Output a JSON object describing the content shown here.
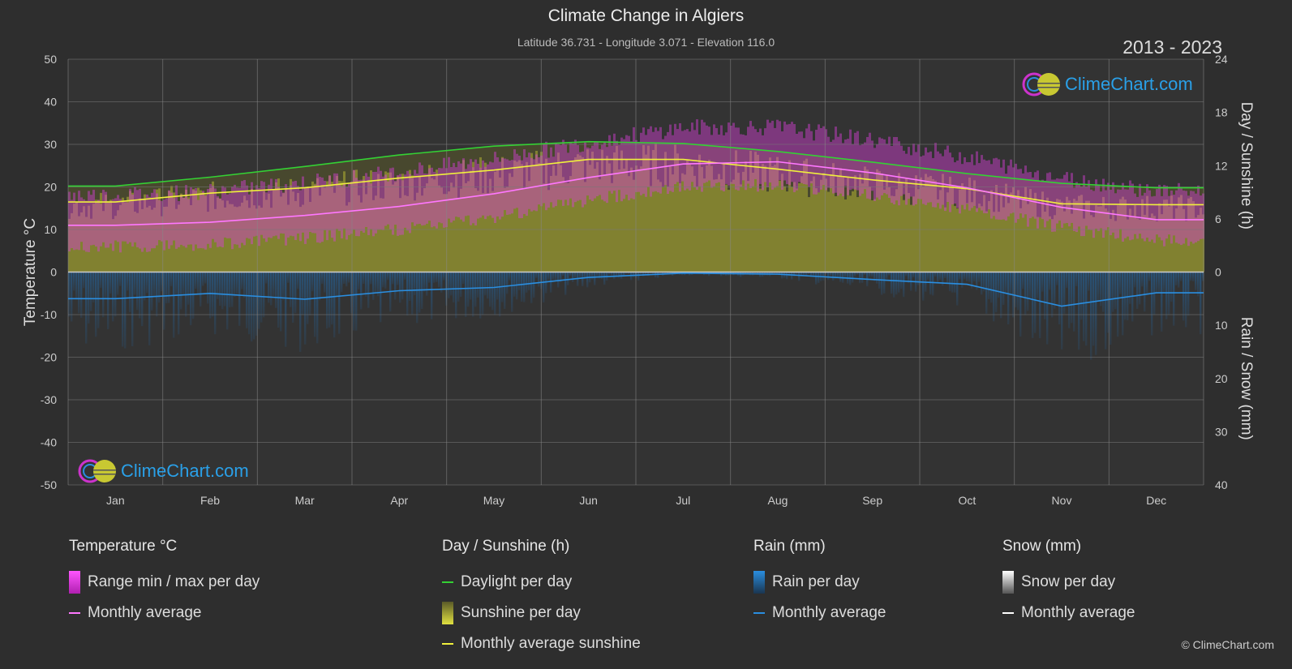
{
  "header": {
    "title": "Climate Change in Algiers",
    "subtitle": "Latitude 36.731 - Longitude 3.071 - Elevation 116.0",
    "years": "2013 - 2023"
  },
  "brand": {
    "logo_text": "ClimeChart.com",
    "copyright": "© ClimeChart.com"
  },
  "colors": {
    "background": "#2e2e2e",
    "temp_range": "#d63fd6",
    "temp_avg": "#ff77ff",
    "daylight": "#34d134",
    "sunshine_fill": "#c8c832",
    "sunshine_avg": "#f0f03c",
    "rain": "#1e78c8",
    "rain_avg": "#2a8ee0",
    "snow_avg": "#ffffff"
  },
  "chart_data": {
    "type": "line",
    "categories": [
      "Jan",
      "Feb",
      "Mar",
      "Apr",
      "May",
      "Jun",
      "Jul",
      "Aug",
      "Sep",
      "Oct",
      "Nov",
      "Dec"
    ],
    "y_left": {
      "label": "Temperature °C",
      "range": [
        -50,
        50
      ],
      "ticks": [
        50,
        40,
        30,
        20,
        10,
        0,
        -10,
        -20,
        -30,
        -40,
        -50
      ]
    },
    "y_right_top": {
      "label": "Day / Sunshine (h)",
      "range": [
        0,
        24
      ],
      "ticks": [
        24,
        18,
        12,
        6,
        0
      ]
    },
    "y_right_bottom": {
      "label": "Rain / Snow (mm)",
      "range": [
        0,
        40
      ],
      "ticks": [
        0,
        10,
        20,
        30,
        40
      ]
    },
    "grid": true,
    "series": [
      {
        "name": "Daylight per day",
        "axis": "sunshine_h",
        "values": [
          9.7,
          10.7,
          11.9,
          13.2,
          14.2,
          14.7,
          14.5,
          13.6,
          12.4,
          11.1,
          10.0,
          9.5
        ]
      },
      {
        "name": "Monthly average sunshine",
        "axis": "sunshine_h",
        "values": [
          7.9,
          8.9,
          9.5,
          10.6,
          11.5,
          12.7,
          12.7,
          11.6,
          10.4,
          9.4,
          7.7,
          7.6
        ]
      },
      {
        "name": "Monthly average",
        "group": "Temperature °C",
        "axis": "temperature_c",
        "values": [
          11.0,
          11.7,
          13.3,
          15.4,
          18.4,
          22.2,
          25.4,
          25.9,
          23.3,
          19.8,
          15.2,
          12.3
        ]
      },
      {
        "name": "Range min / max per day",
        "axis": "temperature_c",
        "min": [
          7.5,
          8.0,
          9.5,
          11.5,
          14.5,
          18.5,
          21.5,
          22.0,
          19.5,
          16.0,
          12.0,
          9.0
        ],
        "max": [
          16.0,
          17.0,
          19.0,
          21.5,
          24.5,
          28.5,
          32.0,
          32.0,
          29.0,
          25.0,
          20.0,
          17.0
        ]
      },
      {
        "name": "Monthly average",
        "group": "Rain (mm)",
        "axis": "rain_mm",
        "values": [
          5.0,
          4.0,
          5.1,
          3.5,
          2.9,
          1.0,
          0.2,
          0.4,
          1.4,
          2.3,
          6.4,
          3.9
        ]
      },
      {
        "name": "Monthly average",
        "group": "Snow (mm)",
        "axis": "rain_mm",
        "values": [
          0,
          0,
          0,
          0,
          0,
          0,
          0,
          0,
          0,
          0,
          0,
          0
        ]
      }
    ]
  },
  "legend": {
    "temperature": {
      "title": "Temperature °C",
      "items": [
        "Range min / max per day",
        "Monthly average"
      ]
    },
    "sunshine": {
      "title": "Day / Sunshine (h)",
      "items": [
        "Daylight per day",
        "Sunshine per day",
        "Monthly average sunshine"
      ]
    },
    "rain": {
      "title": "Rain (mm)",
      "items": [
        "Rain per day",
        "Monthly average"
      ]
    },
    "snow": {
      "title": "Snow (mm)",
      "items": [
        "Snow per day",
        "Monthly average"
      ]
    }
  }
}
